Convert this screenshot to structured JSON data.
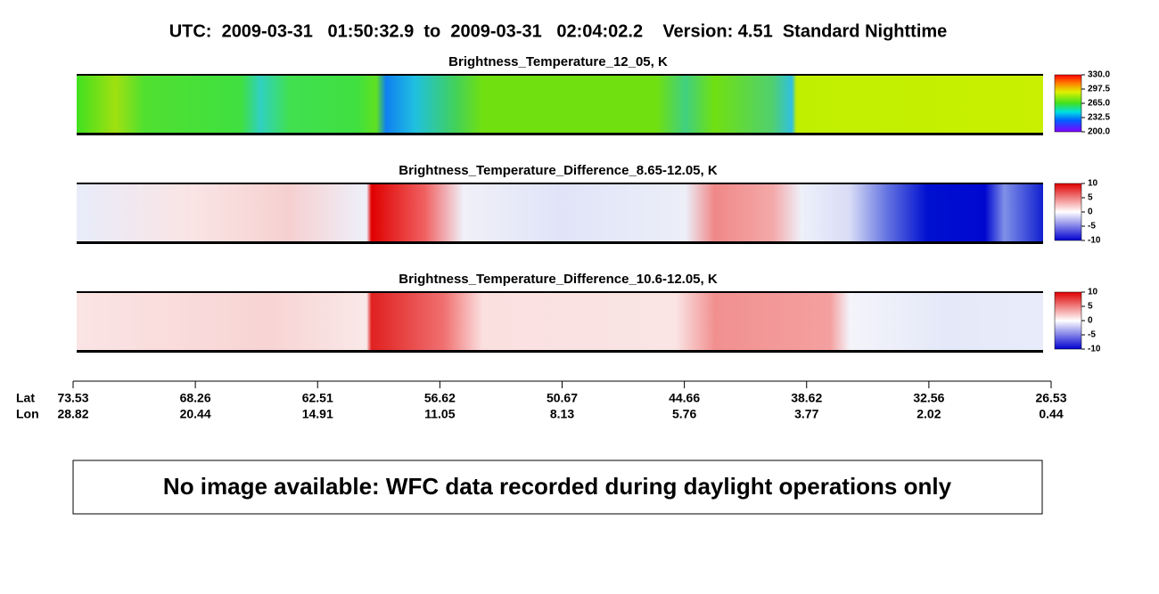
{
  "header": {
    "title": "UTC:  2009-03-31   01:50:32.9  to  2009-03-31   02:04:02.2    Version: 4.51  Standard Nighttime"
  },
  "panels": [
    {
      "title": "Brightness_Temperature_12_05, K",
      "colorbar": {
        "lim": [
          200,
          330
        ],
        "ticks": [
          {
            "value": 330,
            "label": "330.0"
          },
          {
            "value": 297.5,
            "label": "297.5"
          },
          {
            "value": 265,
            "label": "265.0"
          },
          {
            "value": 232.5,
            "label": "232.5"
          },
          {
            "value": 200,
            "label": "200.0"
          }
        ]
      }
    },
    {
      "title": "Brightness_Temperature_Difference_8.65-12.05, K",
      "colorbar": {
        "lim": [
          -10,
          10
        ],
        "ticks": [
          10,
          5,
          0,
          -5,
          -10
        ]
      }
    },
    {
      "title": "Brightness_Temperature_Difference_10.6-12.05, K",
      "colorbar": {
        "lim": [
          -10,
          10
        ],
        "ticks": [
          10,
          5,
          0,
          -5,
          -10
        ]
      }
    }
  ],
  "axis": {
    "row_labels": [
      "Lat",
      "Lon"
    ],
    "ticks": [
      {
        "lat": "73.53",
        "lon": "28.82"
      },
      {
        "lat": "68.26",
        "lon": "20.44"
      },
      {
        "lat": "62.51",
        "lon": "14.91"
      },
      {
        "lat": "56.62",
        "lon": "11.05"
      },
      {
        "lat": "50.67",
        "lon": "8.13"
      },
      {
        "lat": "44.66",
        "lon": "5.76"
      },
      {
        "lat": "38.62",
        "lon": "3.77"
      },
      {
        "lat": "32.56",
        "lon": "2.02"
      },
      {
        "lat": "26.53",
        "lon": "0.44"
      }
    ]
  },
  "note": "No image available: WFC data recorded during daylight operations only"
}
